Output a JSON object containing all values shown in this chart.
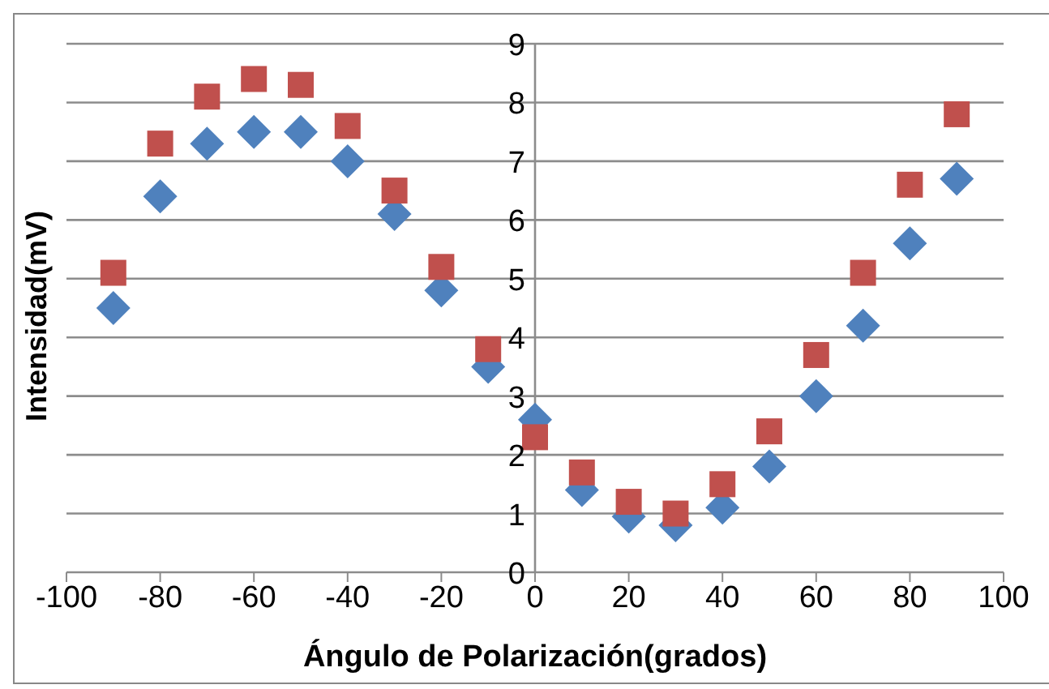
{
  "chart_data": {
    "type": "scatter",
    "xlabel": "Ángulo de Polarización(grados)",
    "ylabel": "Intensidad(mV)",
    "x": [
      -90,
      -80,
      -70,
      -60,
      -50,
      -40,
      -30,
      -20,
      -10,
      0,
      10,
      20,
      30,
      40,
      50,
      60,
      70,
      80,
      90
    ],
    "series": [
      {
        "color": "#4f81bd",
        "marker": "diamond",
        "values": [
          4.5,
          6.4,
          7.3,
          7.5,
          7.5,
          7.0,
          6.1,
          4.8,
          3.5,
          2.6,
          1.4,
          0.95,
          0.8,
          1.1,
          1.8,
          3.0,
          4.2,
          5.6,
          6.7
        ]
      },
      {
        "color": "#c0504d",
        "marker": "square",
        "values": [
          5.1,
          7.3,
          8.1,
          8.4,
          8.3,
          7.6,
          6.5,
          5.2,
          3.8,
          2.3,
          1.7,
          1.2,
          1.0,
          1.5,
          2.4,
          3.7,
          5.1,
          6.6,
          7.8
        ]
      }
    ],
    "xlim": [
      -100,
      100
    ],
    "xticks": [
      -100,
      -80,
      -60,
      -40,
      -20,
      0,
      20,
      40,
      60,
      80,
      100
    ],
    "ylim": [
      0,
      9
    ],
    "yticks": [
      0,
      1,
      2,
      3,
      4,
      5,
      6,
      7,
      8,
      9
    ],
    "grid": "y",
    "legend": false
  }
}
